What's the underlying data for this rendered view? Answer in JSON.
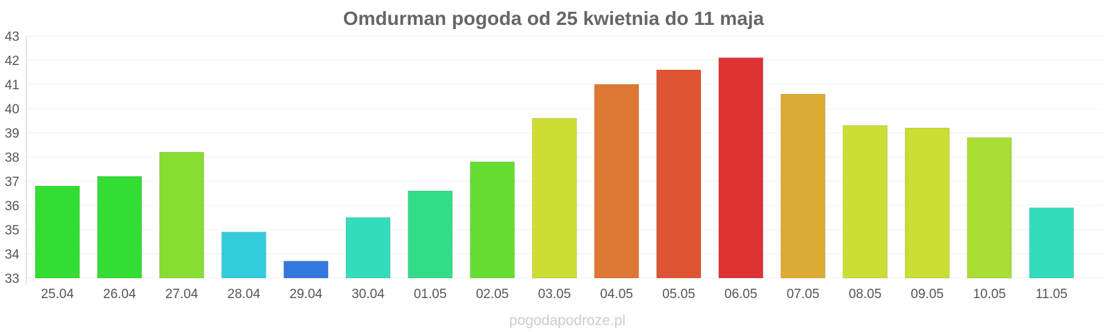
{
  "chart_data": {
    "type": "bar",
    "title": "Omdurman pogoda od 25 kwietnia do 11 maja",
    "categories": [
      "25.04",
      "26.04",
      "27.04",
      "28.04",
      "29.04",
      "30.04",
      "01.05",
      "02.05",
      "03.05",
      "04.05",
      "05.05",
      "06.05",
      "07.05",
      "08.05",
      "09.05",
      "10.05",
      "11.05"
    ],
    "values": [
      36.8,
      37.2,
      38.2,
      34.9,
      33.7,
      35.5,
      36.6,
      37.8,
      39.6,
      41.0,
      41.6,
      42.1,
      40.6,
      39.3,
      39.2,
      38.8,
      35.9
    ],
    "colors": [
      "#33dd33",
      "#33dd33",
      "#88dd33",
      "#33ccdd",
      "#3377dd",
      "#33ddbb",
      "#33dd88",
      "#66dd33",
      "#ccdd33",
      "#dd7733",
      "#dd5533",
      "#dd3333",
      "#ddaa33",
      "#ccdd33",
      "#ccdd33",
      "#aadd33",
      "#33ddbb"
    ],
    "yticks": [
      33,
      34,
      35,
      36,
      37,
      38,
      39,
      40,
      41,
      42,
      43
    ],
    "ylim": [
      33,
      43
    ],
    "xlabel": "",
    "ylabel": "",
    "grid": true,
    "legend": "none"
  },
  "watermark": "pogodapodroze.pl"
}
